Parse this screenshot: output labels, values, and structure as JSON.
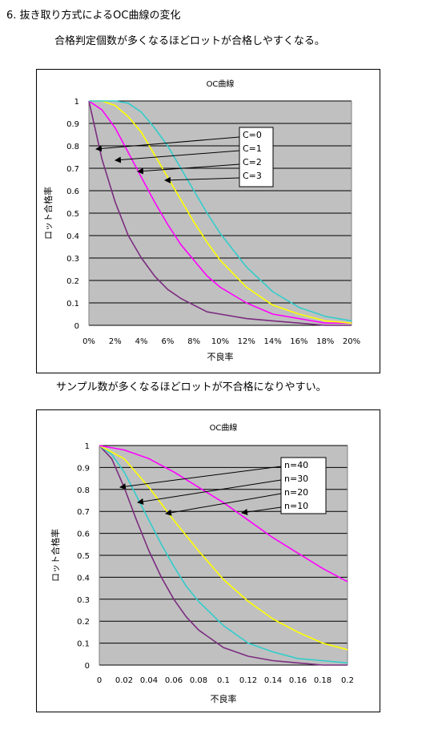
{
  "heading": "6. 抜き取り方式によるOC曲線の変化",
  "caption1": "合格判定個数が多くなるほどロットが合格しやすくなる。",
  "caption2": "サンプル数が多くなるほどロットが不合格になりやすい。",
  "chart_data": [
    {
      "type": "line",
      "title": "OC曲線",
      "xlabel": "不良率",
      "ylabel": "ロット合格率",
      "xlim": [
        0,
        0.2
      ],
      "ylim": [
        0,
        1
      ],
      "x_ticks": [
        "0%",
        "2%",
        "4%",
        "6%",
        "8%",
        "10%",
        "12%",
        "14%",
        "16%",
        "18%",
        "20%"
      ],
      "y_ticks": [
        "0",
        "0.1",
        "0.2",
        "0.3",
        "0.4",
        "0.5",
        "0.6",
        "0.7",
        "0.8",
        "0.9",
        "1"
      ],
      "grid": true,
      "legend_placement": "annotation-box",
      "legend_labels": [
        "C=0",
        "C=1",
        "C=2",
        "C=3"
      ],
      "series": [
        {
          "name": "C=0",
          "color": "#7b2c7f",
          "x": [
            0,
            0.01,
            0.02,
            0.03,
            0.04,
            0.05,
            0.06,
            0.07,
            0.08,
            0.09,
            0.1,
            0.12,
            0.14,
            0.16,
            0.18,
            0.2
          ],
          "y": [
            1,
            0.74,
            0.55,
            0.4,
            0.3,
            0.22,
            0.16,
            0.12,
            0.09,
            0.06,
            0.05,
            0.03,
            0.02,
            0.01,
            0,
            0
          ]
        },
        {
          "name": "C=1",
          "color": "#ff00ff",
          "x": [
            0,
            0.01,
            0.02,
            0.03,
            0.04,
            0.05,
            0.06,
            0.07,
            0.08,
            0.09,
            0.1,
            0.12,
            0.14,
            0.16,
            0.18,
            0.2
          ],
          "y": [
            1,
            0.96,
            0.88,
            0.77,
            0.66,
            0.55,
            0.45,
            0.36,
            0.29,
            0.22,
            0.17,
            0.1,
            0.05,
            0.03,
            0.01,
            0.01
          ]
        },
        {
          "name": "C=2",
          "color": "#ffff00",
          "x": [
            0,
            0.01,
            0.02,
            0.03,
            0.04,
            0.05,
            0.06,
            0.07,
            0.08,
            0.09,
            0.1,
            0.12,
            0.14,
            0.16,
            0.18,
            0.2
          ],
          "y": [
            1,
            1,
            0.98,
            0.93,
            0.86,
            0.76,
            0.66,
            0.56,
            0.46,
            0.37,
            0.29,
            0.17,
            0.09,
            0.05,
            0.02,
            0.01
          ]
        },
        {
          "name": "C=3",
          "color": "#33cccc",
          "x": [
            0,
            0.01,
            0.02,
            0.03,
            0.04,
            0.05,
            0.06,
            0.07,
            0.08,
            0.09,
            0.1,
            0.12,
            0.14,
            0.16,
            0.18,
            0.2
          ],
          "y": [
            1,
            1,
            1,
            0.99,
            0.95,
            0.88,
            0.8,
            0.7,
            0.6,
            0.5,
            0.41,
            0.26,
            0.15,
            0.08,
            0.04,
            0.02
          ]
        }
      ]
    },
    {
      "type": "line",
      "title": "OC曲線",
      "xlabel": "不良率",
      "ylabel": "ロット合格率",
      "xlim": [
        0,
        0.2
      ],
      "ylim": [
        0,
        1
      ],
      "x_ticks": [
        "0",
        "0.02",
        "0.04",
        "0.06",
        "0.08",
        "0.1",
        "0.12",
        "0.14",
        "0.16",
        "0.18",
        "0.2"
      ],
      "y_ticks": [
        "0",
        "0.1",
        "0.2",
        "0.3",
        "0.4",
        "0.5",
        "0.6",
        "0.7",
        "0.8",
        "0.9",
        "1"
      ],
      "grid": true,
      "legend_placement": "annotation-box",
      "legend_labels": [
        "n=40",
        "n=30",
        "n=20",
        "n=10"
      ],
      "series": [
        {
          "name": "n=40",
          "color": "#7b2c7f",
          "x": [
            0,
            0.01,
            0.02,
            0.03,
            0.04,
            0.05,
            0.06,
            0.07,
            0.08,
            0.1,
            0.12,
            0.14,
            0.16,
            0.18,
            0.2
          ],
          "y": [
            1,
            0.94,
            0.81,
            0.66,
            0.52,
            0.4,
            0.3,
            0.22,
            0.16,
            0.08,
            0.04,
            0.02,
            0.01,
            0,
            0
          ]
        },
        {
          "name": "n=30",
          "color": "#33cccc",
          "x": [
            0,
            0.01,
            0.02,
            0.03,
            0.04,
            0.05,
            0.06,
            0.07,
            0.08,
            0.1,
            0.12,
            0.14,
            0.16,
            0.18,
            0.2
          ],
          "y": [
            1,
            0.96,
            0.88,
            0.77,
            0.66,
            0.55,
            0.45,
            0.36,
            0.29,
            0.18,
            0.1,
            0.06,
            0.03,
            0.02,
            0.01
          ]
        },
        {
          "name": "n=20",
          "color": "#ffff00",
          "x": [
            0,
            0.02,
            0.04,
            0.06,
            0.08,
            0.1,
            0.12,
            0.14,
            0.16,
            0.18,
            0.2
          ],
          "y": [
            1,
            0.94,
            0.81,
            0.66,
            0.52,
            0.39,
            0.29,
            0.21,
            0.15,
            0.1,
            0.07
          ]
        },
        {
          "name": "n=10",
          "color": "#ff00ff",
          "x": [
            0,
            0.02,
            0.04,
            0.06,
            0.08,
            0.1,
            0.12,
            0.14,
            0.16,
            0.18,
            0.2
          ],
          "y": [
            1,
            0.98,
            0.94,
            0.88,
            0.81,
            0.74,
            0.66,
            0.58,
            0.51,
            0.44,
            0.38
          ]
        }
      ]
    }
  ]
}
